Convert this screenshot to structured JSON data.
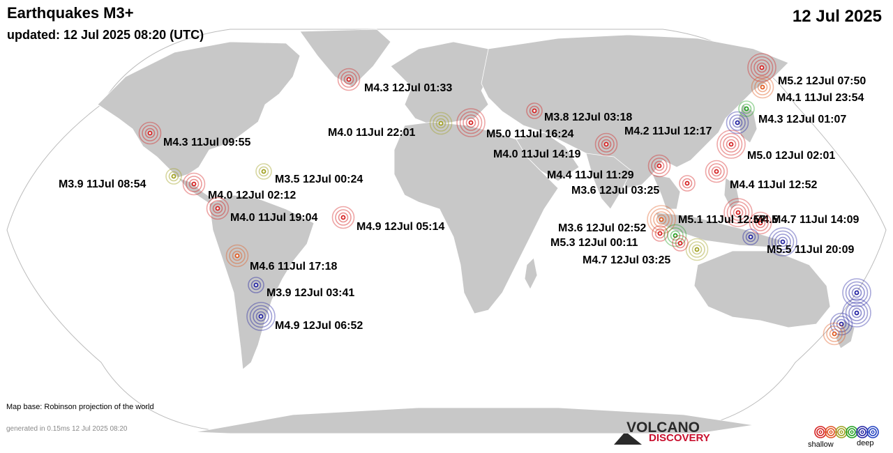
{
  "header": {
    "title": "Earthquakes M3+",
    "updated": "updated: 12 Jul 2025 08:20 (UTC)",
    "date": "12 Jul 2025"
  },
  "footer": {
    "map_base": "Map base: Robinson projection of the world",
    "generated": "generated in 0.15ms 12 Jul 2025 08:20"
  },
  "logo": {
    "word1": "VOLCANO",
    "word2": "DISCOVERY"
  },
  "legend": {
    "shallow_label": "shallow",
    "deep_label": "deep",
    "depth_colors": [
      "#d42020",
      "#e05020",
      "#a0a020",
      "#20a020",
      "#2020a0",
      "#2040c0"
    ]
  },
  "colors": {
    "land": "#c8c8c8",
    "ocean": "#ffffff",
    "shallow": "#d42020",
    "mid": "#e05a20",
    "intermediate": "#a0a020",
    "green": "#20a020",
    "deep": "#2020a0"
  },
  "quakes": [
    {
      "label": "M5.2 12Jul 07:50",
      "color": "#d42020",
      "size": "large"
    },
    {
      "label": "M4.1 11Jul 23:54",
      "color": "#e05a20",
      "size": "medium"
    },
    {
      "label": "M4.3 12Jul 01:07",
      "color": "#2020a0",
      "size": "medium"
    },
    {
      "label": "M4.3 12Jul 01:33",
      "color": "#d42020",
      "size": "medium"
    },
    {
      "label": "M3.8 12Jul 03:18",
      "color": "#d42020",
      "size": "small"
    },
    {
      "label": "M4.2 11Jul 12:17",
      "color": "#20a020",
      "size": "small"
    },
    {
      "label": "M4.0 11Jul 22:01",
      "color": "#a0a020",
      "size": "medium"
    },
    {
      "label": "M5.0 11Jul 16:24",
      "color": "#d42020",
      "size": "large"
    },
    {
      "label": "M4.0 11Jul 14:19",
      "color": "#d42020",
      "size": "medium"
    },
    {
      "label": "M5.0 12Jul 02:01",
      "color": "#d42020",
      "size": "large"
    },
    {
      "label": "M4.3 11Jul 09:55",
      "color": "#d42020",
      "size": "medium"
    },
    {
      "label": "M4.4 11Jul 11:29",
      "color": "#d42020",
      "size": "medium"
    },
    {
      "label": "M4.4 11Jul 12:52",
      "color": "#d42020",
      "size": "medium"
    },
    {
      "label": "M3.6 12Jul 03:25",
      "color": "#d42020",
      "size": "small"
    },
    {
      "label": "M3.5 12Jul 00:24",
      "color": "#a0a020",
      "size": "small"
    },
    {
      "label": "M3.9 11Jul 08:54",
      "color": "#a0a020",
      "size": "small"
    },
    {
      "label": "M4.0 12Jul 02:12",
      "color": "#d42020",
      "size": "medium"
    },
    {
      "label": "M4.0 11Jul 19:04",
      "color": "#d42020",
      "size": "medium"
    },
    {
      "label": "M4.9 12Jul 05:14",
      "color": "#d42020",
      "size": "medium"
    },
    {
      "label": "M4.5",
      "color": "#d42020",
      "size": "large"
    },
    {
      "label": "M4.7 11Jul 14:09",
      "color": "#d42020",
      "size": "medium"
    },
    {
      "label": "M5.1 11Jul 12:57",
      "color": "#e05a20",
      "size": "large"
    },
    {
      "label": "M3.6 12Jul 02:52",
      "color": "#d42020",
      "size": "small"
    },
    {
      "label": "M5.3 12Jul 00:11",
      "color": "#20a020",
      "size": "medium"
    },
    {
      "label": "M4.7 12Jul 03:25",
      "color": "#a0a020",
      "size": "medium"
    },
    {
      "label": "M5.5 11Jul 20:09",
      "color": "#2020a0",
      "size": "large"
    },
    {
      "label": "M4.6 11Jul 17:18",
      "color": "#e05a20",
      "size": "medium"
    },
    {
      "label": "M3.9 12Jul 03:41",
      "color": "#2020a0",
      "size": "small"
    },
    {
      "label": "M4.9 12Jul 06:52",
      "color": "#2020a0",
      "size": "large"
    },
    {
      "label": "",
      "color": "#2020a0",
      "size": "large"
    },
    {
      "label": "",
      "color": "#2020a0",
      "size": "large"
    },
    {
      "label": "",
      "color": "#2020a0",
      "size": "medium"
    },
    {
      "label": "",
      "color": "#e05a20",
      "size": "medium"
    },
    {
      "label": "",
      "color": "#2020a0",
      "size": "small"
    },
    {
      "label": "",
      "color": "#d42020",
      "size": "small"
    }
  ]
}
